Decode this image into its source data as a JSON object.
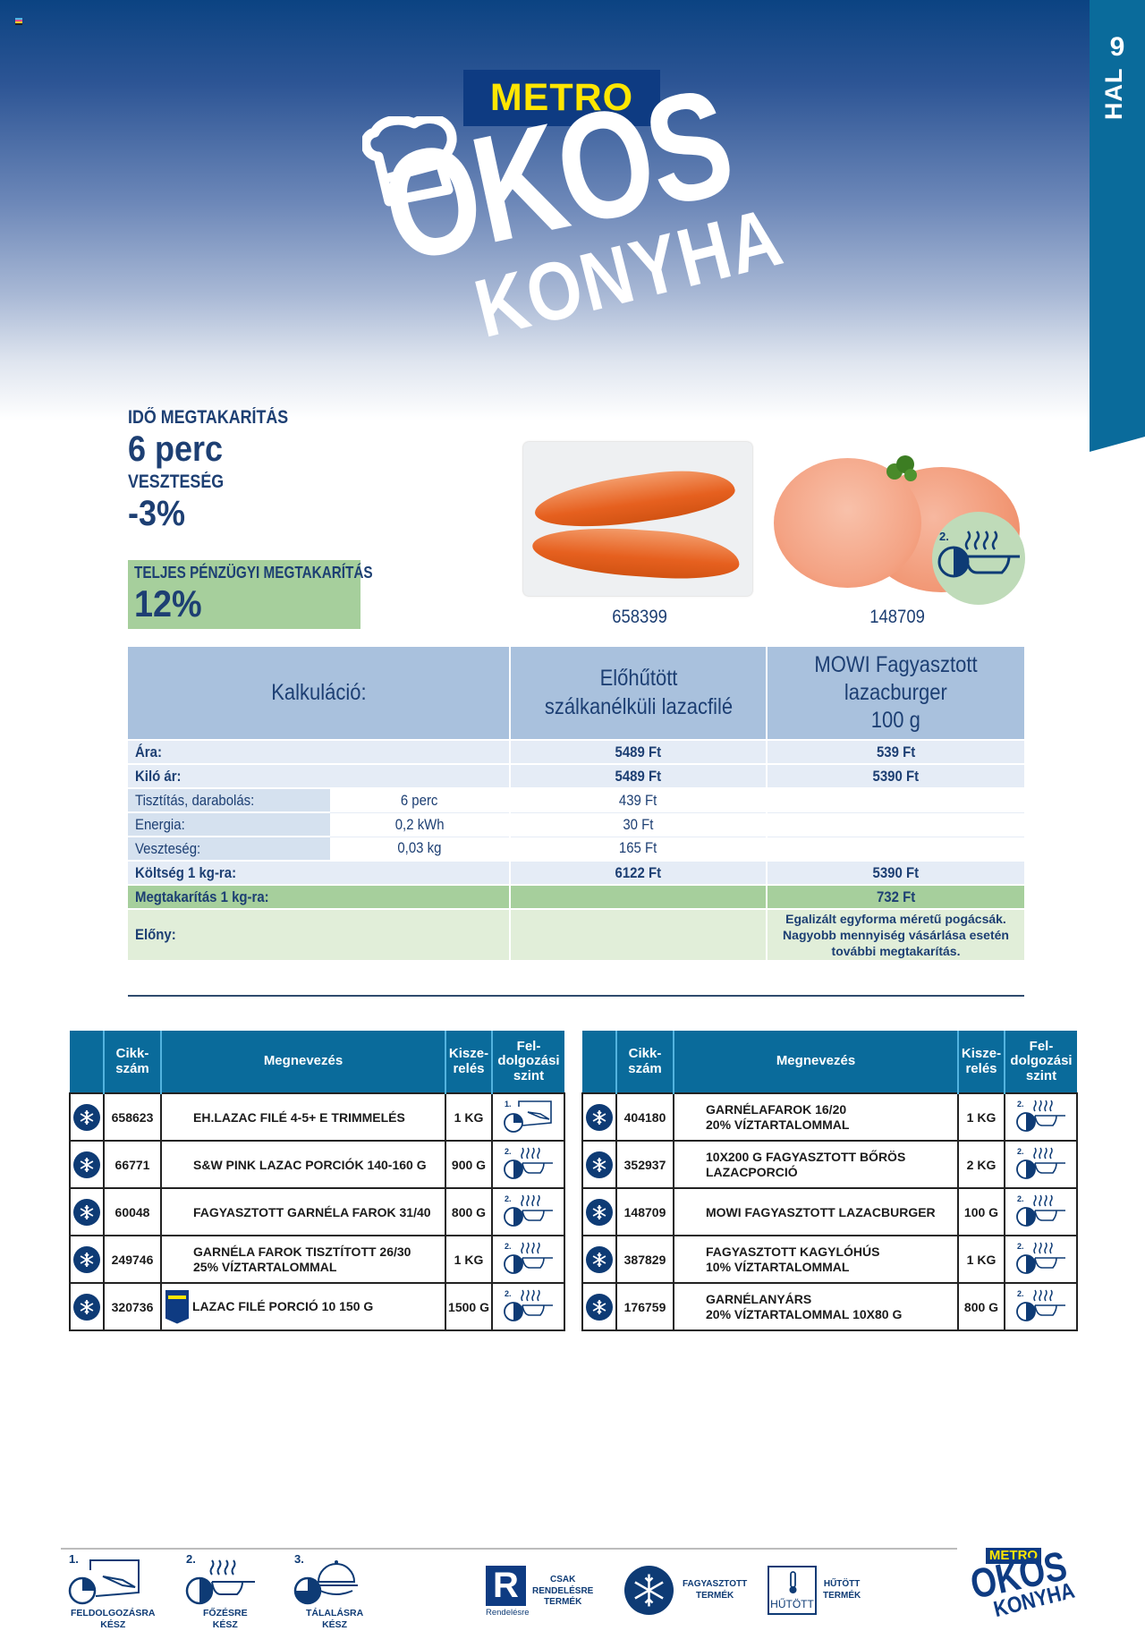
{
  "page": {
    "number": "9",
    "category": "HAL"
  },
  "brand": {
    "metro": "METRO",
    "okos": "OKOS",
    "konyha": "KONYHA",
    "colors": {
      "navy": "#0e3b82",
      "yellow": "#ffe600",
      "teal": "#0a6b9b",
      "green": "#a6cf9c"
    }
  },
  "stats": {
    "time_label": "IDŐ MEGTAKARÍTÁS",
    "time_value": "6 perc",
    "loss_label": "VESZTESÉG",
    "loss_value": "-3%",
    "total_label": "TELJES PÉNZÜGYI MEGTAKARÍTÁS",
    "total_value": "12%"
  },
  "products_featured": [
    {
      "article": "658399",
      "image": "salmon-fillet"
    },
    {
      "article": "148709",
      "image": "salmon-burger",
      "level_badge": "2."
    }
  ],
  "calc": {
    "header": {
      "label": "Kalkuláció:",
      "col1": "Előhűtött szálkanélküli lazacfilé",
      "col2_line1": "MOWI Fagyasztott",
      "col2_line2": "lazacburger",
      "col2_line3": "100 g"
    },
    "rows": [
      {
        "label": "Ára:",
        "mid": "",
        "col1": "5489 Ft",
        "col2": "539 Ft"
      },
      {
        "label": "Kiló ár:",
        "mid": "",
        "col1": "5489 Ft",
        "col2": "5390 Ft"
      },
      {
        "label": "Tisztítás, darabolás:",
        "mid": "6 perc",
        "col1": "439 Ft",
        "col2": ""
      },
      {
        "label": "Energia:",
        "mid": "0,2 kWh",
        "col1": "30 Ft",
        "col2": ""
      },
      {
        "label": "Veszteség:",
        "mid": "0,03 kg",
        "col1": "165 Ft",
        "col2": ""
      },
      {
        "label": "Költség 1 kg-ra:",
        "mid": "",
        "col1": "6122 Ft",
        "col2": "5390 Ft"
      },
      {
        "label": "Megtakarítás 1 kg-ra:",
        "mid": "",
        "col1": "",
        "col2": "732 Ft"
      }
    ],
    "advantage": {
      "label": "Előny:",
      "text_line1": "Egalizált egyforma méretű pogácsák.",
      "text_line2": "Nagyobb mennyiség vásárlása esetén",
      "text_line3": "további megtakarítás."
    }
  },
  "product_tables": {
    "headers": {
      "article_1": "Cikk-",
      "article_2": "szám",
      "name": "Megnevezés",
      "pack_1": "Kisze-",
      "pack_2": "relés",
      "level_1": "Fel-",
      "level_2": "dolgozási",
      "level_3": "szint"
    },
    "left": [
      {
        "icon": "snowflake",
        "article": "658623",
        "name_1": "EH.LAZAC FILÉ 4-5+ E TRIMMELÉS",
        "name_2": "",
        "pack": "1 KG",
        "level": "1."
      },
      {
        "icon": "snowflake",
        "article": "66771",
        "name_1": "S&W PINK LAZAC PORCIÓK 140-160 G",
        "name_2": "",
        "pack": "900 G",
        "level": "2."
      },
      {
        "icon": "snowflake",
        "article": "60048",
        "name_1": "FAGYASZTOTT GARNÉLA FAROK 31/40",
        "name_2": "",
        "pack": "800 G",
        "level": "2."
      },
      {
        "icon": "snowflake",
        "article": "249746",
        "name_1": "GARNÉLA FAROK TISZTÍTOTT 26/30",
        "name_2": "25% VÍZTARTALOMMAL",
        "pack": "1 KG",
        "level": "2."
      },
      {
        "icon": "snowflake",
        "article": "320736",
        "name_1": "LAZAC FILÉ PORCIÓ 10 150 G",
        "name_2": "",
        "pack": "1500 G",
        "level": "2.",
        "badge": "METRO Chef"
      }
    ],
    "right": [
      {
        "icon": "snowflake",
        "article": "404180",
        "name_1": "GARNÉLAFAROK 16/20",
        "name_2": "20% VÍZTARTALOMMAL",
        "pack": "1 KG",
        "level": "2."
      },
      {
        "icon": "snowflake",
        "article": "352937",
        "name_1": "10X200 G FAGYASZTOTT BŐRÖS LAZACPORCIÓ",
        "name_2": "",
        "pack": "2 KG",
        "level": "2."
      },
      {
        "icon": "snowflake",
        "article": "148709",
        "name_1": "MOWI FAGYASZTOTT LAZACBURGER",
        "name_2": "",
        "pack": "100 G",
        "level": "2."
      },
      {
        "icon": "snowflake",
        "article": "387829",
        "name_1": "FAGYASZTOTT KAGYLÓHÚS",
        "name_2": "10% VÍZTARTALOMMAL",
        "pack": "1 KG",
        "level": "2."
      },
      {
        "icon": "snowflake",
        "article": "176759",
        "name_1": "GARNÉLANYÁRS",
        "name_2": "20% VÍZTARTALOMMAL 10X80 G",
        "pack": "800 G",
        "level": "2."
      }
    ]
  },
  "legend": {
    "level1": {
      "num": "1.",
      "cap_1": "FELDOLGOZÁSRA",
      "cap_2": "KÉSZ"
    },
    "level2": {
      "num": "2.",
      "cap_1": "FŐZÉSRE",
      "cap_2": "KÉSZ"
    },
    "level3": {
      "num": "3.",
      "cap_1": "TÁLALÁSRA",
      "cap_2": "KÉSZ"
    },
    "order": {
      "letter": "R",
      "sub": "Rendelésre",
      "cap_1": "CSAK",
      "cap_2": "RENDELÉSRE",
      "cap_3": "TERMÉK"
    },
    "frozen": {
      "cap_1": "FAGYASZTOTT",
      "cap_2": "TERMÉK"
    },
    "chilled": {
      "box": "HŰTÖTT",
      "cap_1": "HŰTÖTT",
      "cap_2": "TERMÉK"
    }
  }
}
